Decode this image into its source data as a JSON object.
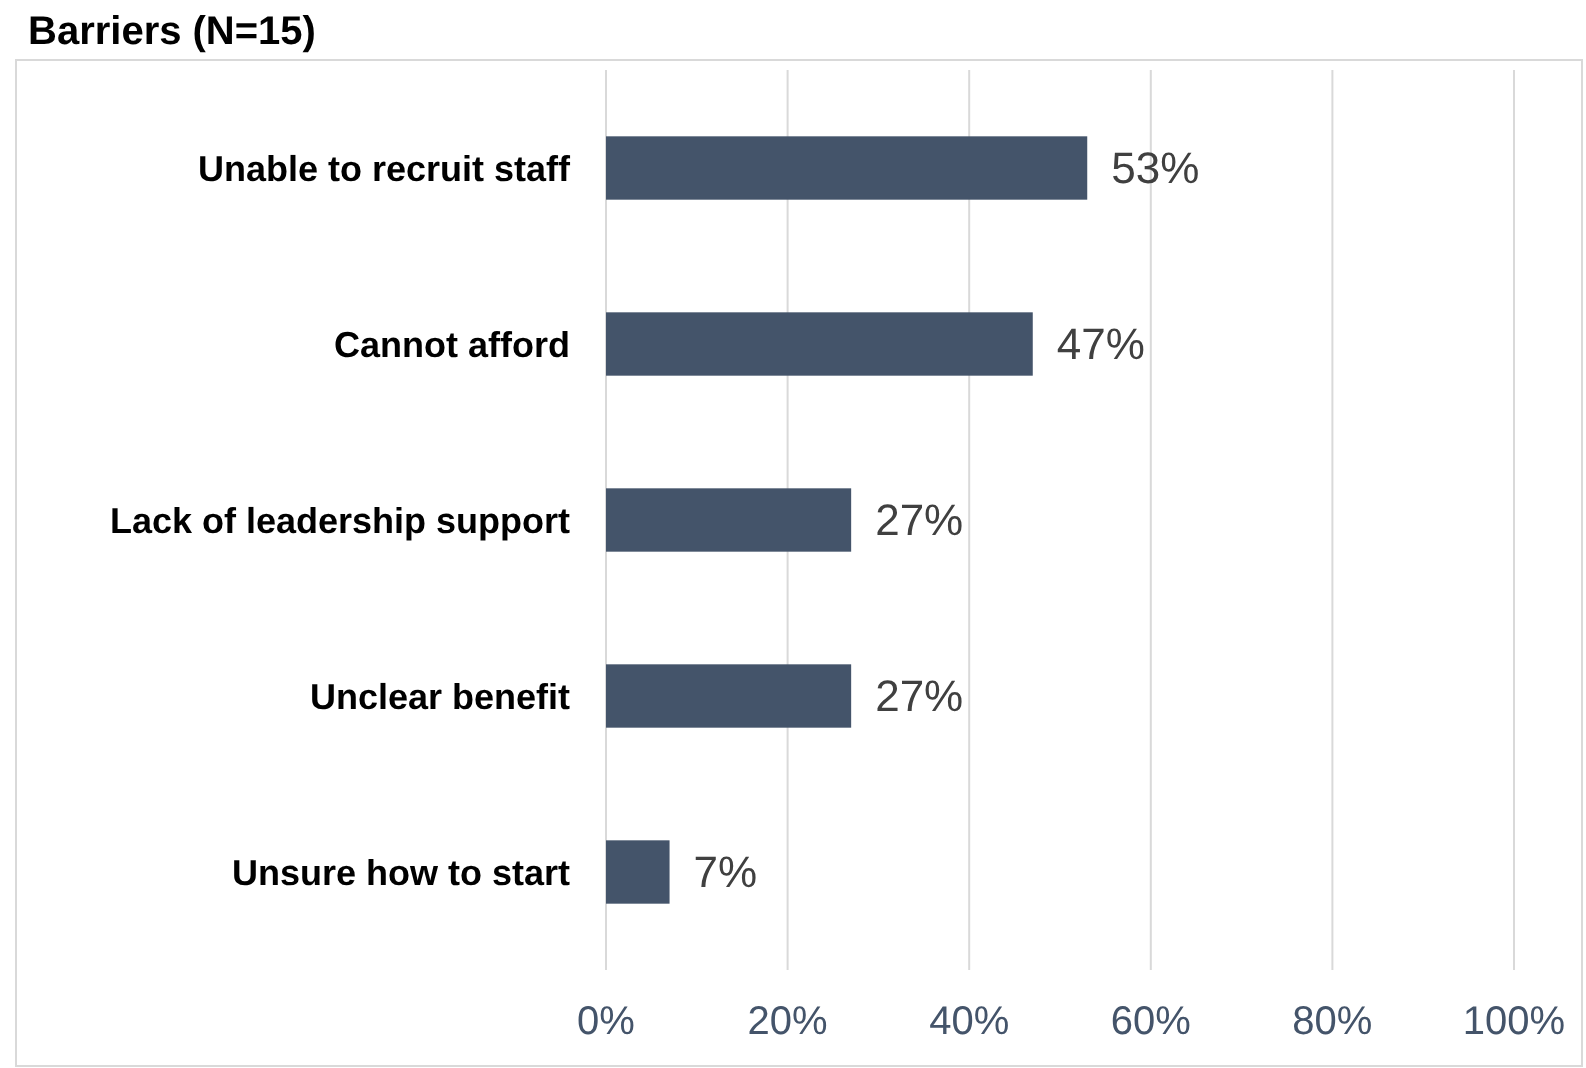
{
  "chart_data": {
    "type": "bar",
    "orientation": "horizontal",
    "title": "Barriers (N=15)",
    "categories": [
      "Unable to recruit staff",
      "Cannot afford",
      "Lack of leadership support",
      "Unclear benefit",
      "Unsure how to start"
    ],
    "values": [
      53,
      47,
      27,
      27,
      7
    ],
    "value_labels": [
      "53%",
      "47%",
      "27%",
      "27%",
      "7%"
    ],
    "color": "#44546a",
    "xlim": [
      0,
      100
    ],
    "xticks": [
      {
        "value": 0,
        "label": "0%"
      },
      {
        "value": 20,
        "label": "20%"
      },
      {
        "value": 40,
        "label": "40%"
      },
      {
        "value": 60,
        "label": "60%"
      },
      {
        "value": 80,
        "label": "80%"
      },
      {
        "value": 100,
        "label": "100%"
      }
    ],
    "grid": "x"
  }
}
